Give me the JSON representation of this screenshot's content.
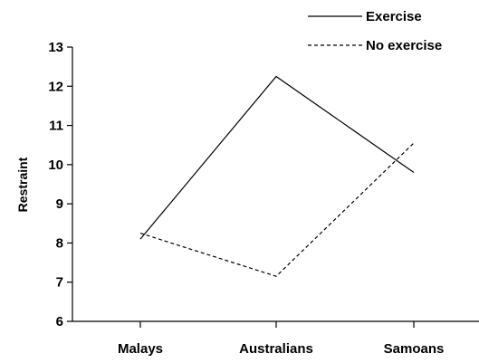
{
  "chart_data": {
    "type": "line",
    "categories": [
      "Malays",
      "Australians",
      "Samoans"
    ],
    "series": [
      {
        "name": "Exercise",
        "values": [
          8.1,
          12.25,
          9.8
        ],
        "line_style": "solid",
        "color": "#000000"
      },
      {
        "name": "No exercise",
        "values": [
          8.25,
          7.15,
          10.55
        ],
        "line_style": "dashed",
        "color": "#000000"
      }
    ],
    "title": "",
    "xlabel": "",
    "ylabel": "Restraint",
    "ylim": [
      6,
      13
    ],
    "yticks": [
      "6",
      "7",
      "8",
      "9",
      "10",
      "11",
      "12",
      "13"
    ],
    "grid": false,
    "legend": "top-right"
  }
}
